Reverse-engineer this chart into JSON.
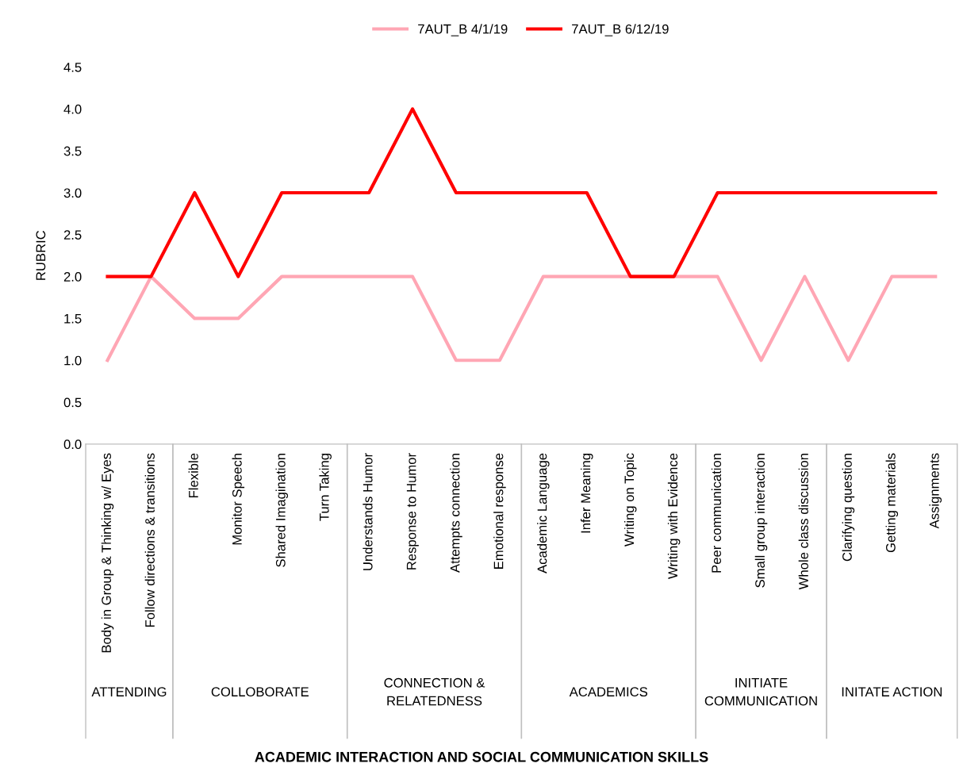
{
  "chart_data": {
    "type": "line",
    "ylabel": "RUBRIC",
    "annotations": [
      "ATTENDING",
      "COLLOBORATE",
      "CONNECTION &\nRELATEDNESS",
      "ACADEMICS",
      "INITIATE\nCOMMUNICATION",
      "INITATE ACTION",
      "ACADEMIC INTERACTION AND SOCIAL COMMUNICATION SKILLS"
    ],
    "categories": [
      "Body in Group & Thinking w/ Eyes",
      "Follow directions & transitions",
      "Flexible",
      "Monitor Speech",
      "Shared Imagination",
      "Turn Taking",
      "Understands Humor",
      "Response to Humor",
      "Attempts connection",
      "Emotional response",
      "Academic Language",
      "Infer Meaning",
      "Writing on Topic",
      "Writing with Evidence",
      "Peer communication",
      "Small group interaction",
      "Whole class discussion",
      "Clarifying question",
      "Getting materials",
      "Assignments"
    ],
    "series": [
      {
        "name": "7AUT_B 4/1/19",
        "color": "#ffa6b4",
        "values": [
          1,
          2,
          1.5,
          1.5,
          2,
          2,
          2,
          2,
          1,
          1,
          2,
          2,
          2,
          2,
          2,
          1,
          2,
          1,
          2,
          2
        ]
      },
      {
        "name": "7AUT_B 6/12/19",
        "color": "#ff0000",
        "values": [
          2,
          2,
          3,
          2,
          3,
          3,
          3,
          4,
          3,
          3,
          3,
          3,
          2,
          2,
          3,
          3,
          3,
          3,
          3,
          3
        ]
      }
    ],
    "ylim": [
      0,
      4.5
    ],
    "yticks": [
      {
        "value": 0,
        "label": "0.0"
      },
      {
        "value": 0.5,
        "label": "0.5"
      },
      {
        "value": 1,
        "label": "1.0"
      },
      {
        "value": 1.5,
        "label": "1.5"
      },
      {
        "value": 2,
        "label": "2.0"
      },
      {
        "value": 2.5,
        "label": "2.5"
      },
      {
        "value": 3,
        "label": "3.0"
      },
      {
        "value": 3.5,
        "label": "3.5"
      },
      {
        "value": 4,
        "label": "4.0"
      },
      {
        "value": 4.5,
        "label": "4.5"
      }
    ],
    "grid": false,
    "legend": "top",
    "marker": "none",
    "line_style": "solid"
  }
}
